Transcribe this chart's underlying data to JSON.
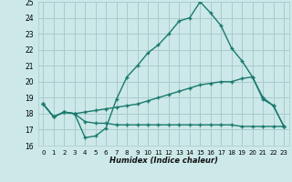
{
  "xlabel": "Humidex (Indice chaleur)",
  "ylabel": "",
  "xlim": [
    -0.5,
    23.5
  ],
  "ylim": [
    16,
    25
  ],
  "xtick_vals": [
    0,
    1,
    2,
    3,
    4,
    5,
    6,
    7,
    8,
    9,
    10,
    11,
    12,
    13,
    14,
    15,
    16,
    17,
    18,
    19,
    20,
    21,
    22,
    23
  ],
  "ytick_vals": [
    16,
    17,
    18,
    19,
    20,
    21,
    22,
    23,
    24,
    25
  ],
  "bg_color": "#cce8e8",
  "grid_color": "#aacccc",
  "line_color": "#1a7a6e",
  "line1_x": [
    0,
    1,
    2,
    3,
    4,
    5,
    6,
    7,
    8,
    9,
    10,
    11,
    12,
    13,
    14,
    15,
    16,
    17,
    18,
    19,
    20,
    21,
    22,
    23
  ],
  "line1_y": [
    18.6,
    17.8,
    18.1,
    18.0,
    16.5,
    16.6,
    17.1,
    18.9,
    20.3,
    21.0,
    21.8,
    22.3,
    23.0,
    23.8,
    24.0,
    25.0,
    24.3,
    23.5,
    22.1,
    21.3,
    20.3,
    18.9,
    18.5,
    17.2
  ],
  "line2_x": [
    0,
    1,
    2,
    3,
    4,
    5,
    6,
    7,
    8,
    9,
    10,
    11,
    12,
    13,
    14,
    15,
    16,
    17,
    18,
    19,
    20,
    21,
    22,
    23
  ],
  "line2_y": [
    18.6,
    17.8,
    18.1,
    18.0,
    18.1,
    18.2,
    18.3,
    18.4,
    18.5,
    18.6,
    18.8,
    19.0,
    19.2,
    19.4,
    19.6,
    19.8,
    19.9,
    20.0,
    20.0,
    20.2,
    20.3,
    19.0,
    18.5,
    17.2
  ],
  "line3_x": [
    0,
    1,
    2,
    3,
    4,
    5,
    6,
    7,
    8,
    9,
    10,
    11,
    12,
    13,
    14,
    15,
    16,
    17,
    18,
    19,
    20,
    21,
    22,
    23
  ],
  "line3_y": [
    18.6,
    17.8,
    18.1,
    18.0,
    17.5,
    17.4,
    17.4,
    17.3,
    17.3,
    17.3,
    17.3,
    17.3,
    17.3,
    17.3,
    17.3,
    17.3,
    17.3,
    17.3,
    17.3,
    17.2,
    17.2,
    17.2,
    17.2,
    17.2
  ]
}
